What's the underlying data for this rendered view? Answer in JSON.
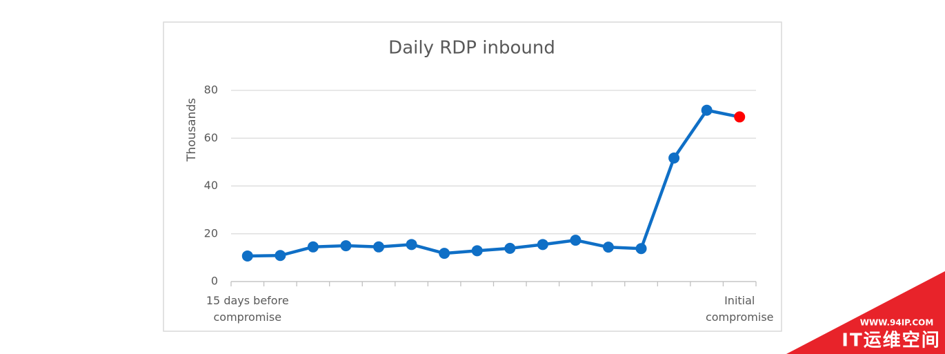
{
  "chart_data": {
    "type": "line",
    "title": "Daily RDP inbound",
    "y_label": "Thousands",
    "categories": [
      "15 days before compromise",
      null,
      null,
      null,
      null,
      null,
      null,
      null,
      null,
      null,
      null,
      null,
      null,
      null,
      null,
      "Initial compromise"
    ],
    "series": [
      {
        "name": "Daily RDP inbound",
        "color": "#0f6fc6",
        "values": [
          10.7,
          10.9,
          14.5,
          15,
          14.5,
          15.5,
          11.8,
          12.9,
          13.9,
          15.5,
          17.3,
          14.4,
          13.8,
          51.7,
          71.7,
          68.9
        ],
        "point_colors": [
          "#0f6fc6",
          "#0f6fc6",
          "#0f6fc6",
          "#0f6fc6",
          "#0f6fc6",
          "#0f6fc6",
          "#0f6fc6",
          "#0f6fc6",
          "#0f6fc6",
          "#0f6fc6",
          "#0f6fc6",
          "#0f6fc6",
          "#0f6fc6",
          "#0f6fc6",
          "#0f6fc6",
          "#ff0000"
        ]
      }
    ],
    "ylim": [
      0,
      80
    ],
    "yticks": [
      0,
      20,
      40,
      60,
      80
    ],
    "grid": true
  },
  "watermark": {
    "url": "WWW.94IP.COM",
    "name": "IT运维空间"
  }
}
